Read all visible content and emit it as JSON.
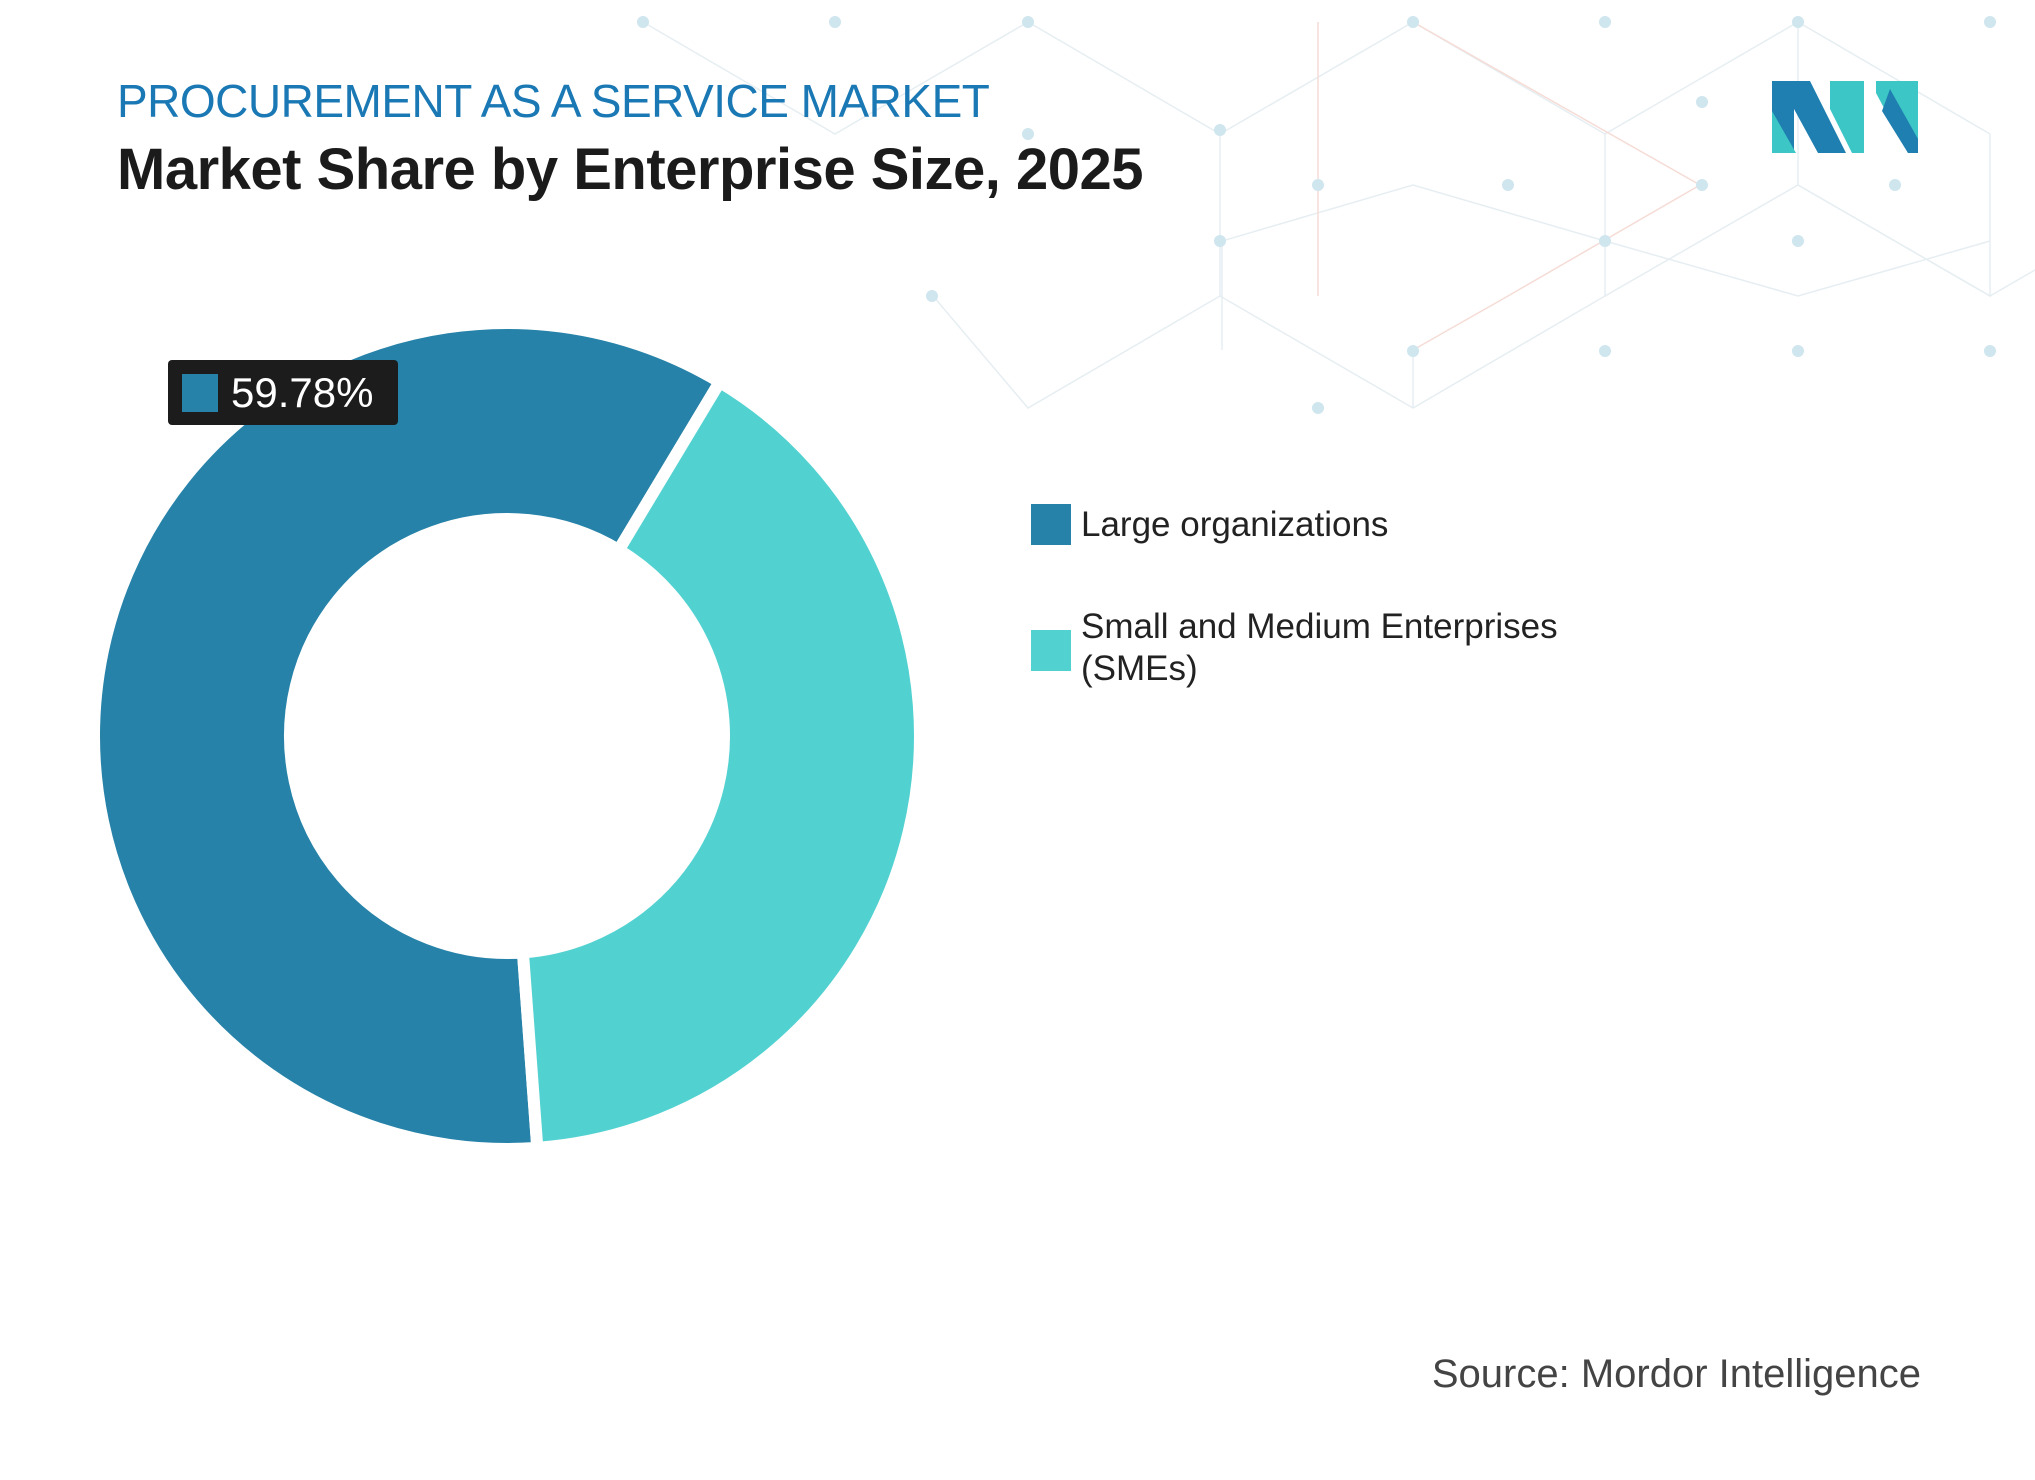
{
  "header": {
    "kicker": "PROCUREMENT AS A SERVICE MARKET",
    "title": "Market Share by Enterprise Size, 2025"
  },
  "chart_data": {
    "type": "pie",
    "variant": "donut",
    "categories": [
      "Large organizations",
      "Small and Medium Enterprises (SMEs)"
    ],
    "values": [
      59.78,
      40.22
    ],
    "colors": [
      "#2682a8",
      "#52d1d1"
    ],
    "data_labels": [
      {
        "category": "Large organizations",
        "text": "59.78%"
      }
    ],
    "legend_position": "right"
  },
  "legend": {
    "items": [
      {
        "label": "Large organizations",
        "color": "#2682a8"
      },
      {
        "label_line1": "Small and Medium Enterprises",
        "label_line2": "(SMEs)",
        "color": "#52d1d1"
      }
    ]
  },
  "data_label": "59.78%",
  "source": "Source: Mordor Intelligence",
  "logo": {
    "text": "Mordor Intelligence"
  }
}
